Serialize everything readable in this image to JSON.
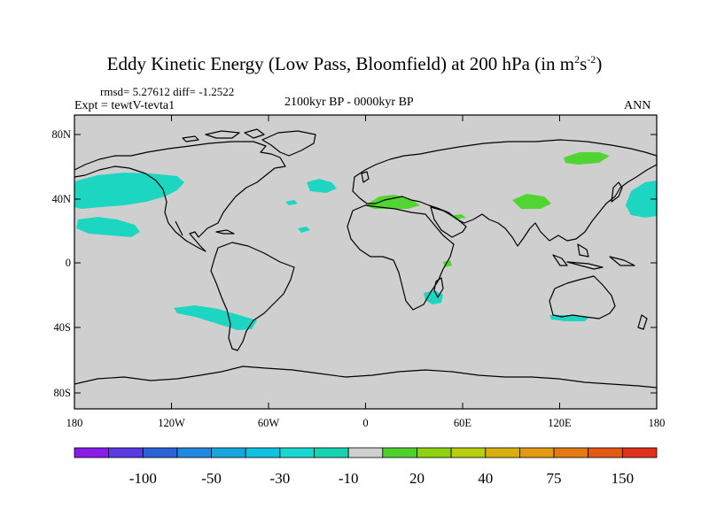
{
  "title": {
    "main": "Eddy Kinetic Energy (Low Pass, Bloomfield) at 200 hPa (in m",
    "sup1": "2",
    "mid": "s",
    "sup2": "-2",
    "close": ")"
  },
  "stats_line": "rmsd= 5.27612 diff= -1.2522",
  "experiment": "Expt = tewtV-tevta1",
  "period": "2100kyr BP - 0000kyr BP",
  "season": "ANN",
  "lat_ticks": [
    "80N",
    "40N",
    "0",
    "40S",
    "80S"
  ],
  "lon_ticks": [
    "180",
    "120W",
    "60W",
    "0",
    "60E",
    "120E",
    "180"
  ],
  "colorbar": {
    "colors": [
      "#8a1ce8",
      "#5a3ae3",
      "#2b62d8",
      "#1f88df",
      "#16a6de",
      "#10c2e0",
      "#1bd7d3",
      "#16d3b1",
      "#cfcfcf",
      "#4fd12b",
      "#8ed10e",
      "#b8cf0c",
      "#d8b00d",
      "#e39a12",
      "#e47b12",
      "#e35a12",
      "#e0311a"
    ],
    "labels": [
      "-100",
      "-50",
      "-30",
      "-10",
      "20",
      "40",
      "75",
      "150"
    ]
  },
  "map_colors": {
    "ocean": "#cfcfcf",
    "cyan": "#1dd6c2",
    "green": "#52d432"
  }
}
